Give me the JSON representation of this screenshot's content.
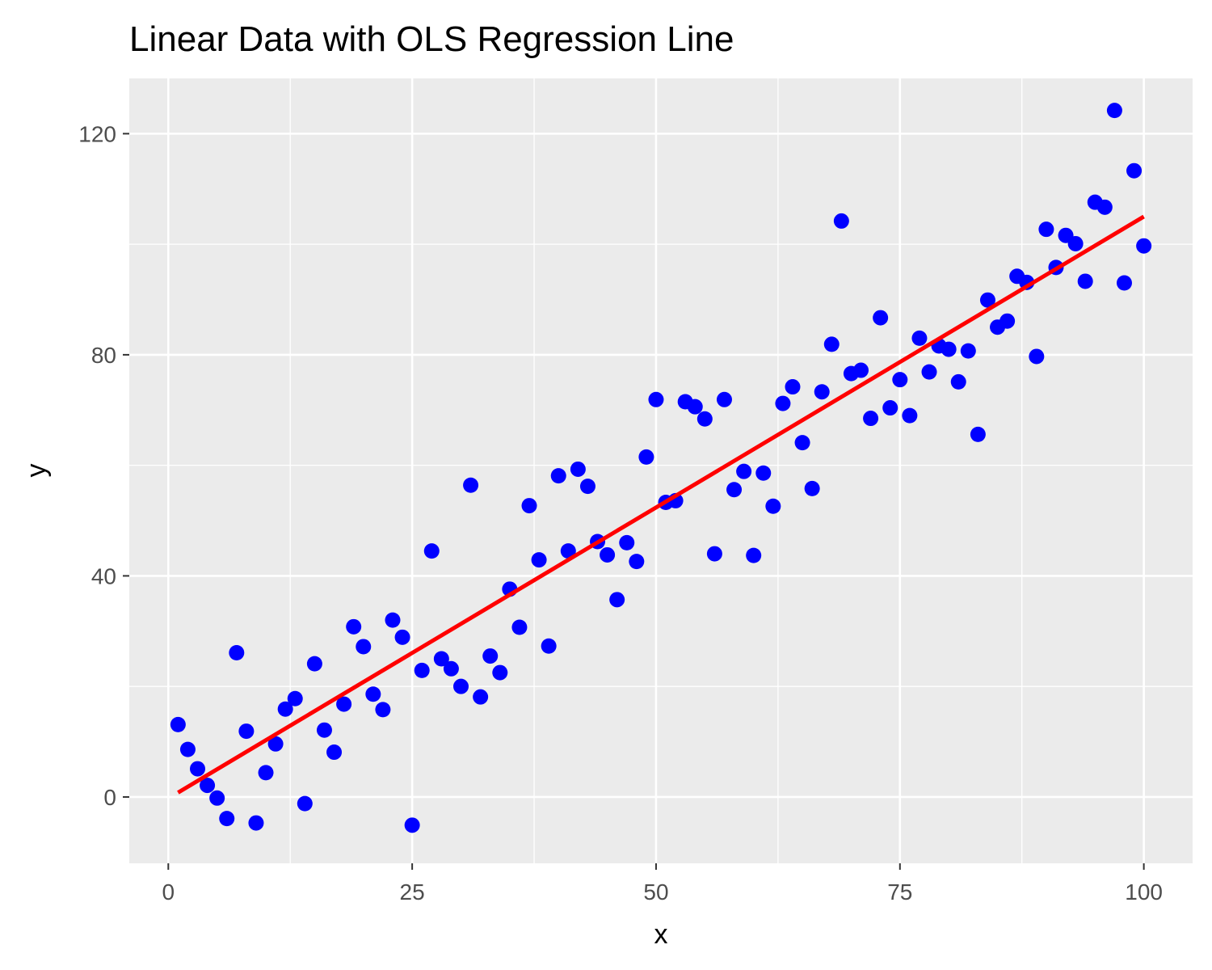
{
  "chart_data": {
    "type": "scatter",
    "title": "Linear Data with OLS Regression Line",
    "xlabel": "x",
    "ylabel": "y",
    "xlim": [
      -4,
      105
    ],
    "ylim": [
      -12,
      130
    ],
    "x_ticks": [
      0,
      25,
      50,
      75,
      100
    ],
    "y_ticks": [
      0,
      40,
      80,
      120
    ],
    "grid": true,
    "legend": "none",
    "colors": {
      "points": "#0000ff",
      "regression_line": "#ff0000",
      "panel": "#ebebeb",
      "grid": "#ffffff"
    },
    "points": {
      "x": [
        1,
        2,
        3,
        4,
        5,
        6,
        7,
        8,
        9,
        10,
        11,
        12,
        13,
        14,
        15,
        16,
        17,
        18,
        19,
        20,
        21,
        22,
        23,
        24,
        25,
        26,
        27,
        28,
        29,
        30,
        31,
        32,
        33,
        34,
        35,
        36,
        37,
        38,
        39,
        40,
        41,
        42,
        43,
        44,
        45,
        46,
        47,
        48,
        49,
        50,
        51,
        52,
        53,
        54,
        55,
        56,
        57,
        58,
        59,
        60,
        61,
        62,
        63,
        64,
        65,
        66,
        67,
        68,
        69,
        70,
        71,
        72,
        73,
        74,
        75,
        76,
        77,
        78,
        79,
        80,
        81,
        82,
        83,
        84,
        85,
        86,
        87,
        88,
        89,
        90,
        91,
        92,
        93,
        94,
        95,
        96,
        97,
        98,
        99,
        100
      ],
      "y": [
        13.1,
        8.6,
        5.1,
        2.1,
        -0.2,
        -3.9,
        26.1,
        11.9,
        -4.7,
        4.4,
        9.6,
        15.9,
        17.8,
        -1.2,
        24.1,
        12.1,
        8.1,
        16.8,
        30.8,
        27.2,
        18.6,
        15.8,
        32.0,
        28.9,
        -5.1,
        22.9,
        44.5,
        25.0,
        23.2,
        20.0,
        56.4,
        18.1,
        25.5,
        22.5,
        37.6,
        30.7,
        52.7,
        42.9,
        27.3,
        58.1,
        44.5,
        59.3,
        56.2,
        46.2,
        43.8,
        35.7,
        46.0,
        42.6,
        61.5,
        71.9,
        53.3,
        53.6,
        71.5,
        70.6,
        68.4,
        44.0,
        71.9,
        55.6,
        58.9,
        43.7,
        58.6,
        52.6,
        71.2,
        74.2,
        64.1,
        55.8,
        73.3,
        81.9,
        104.2,
        76.6,
        77.2,
        68.5,
        86.7,
        70.4,
        75.5,
        69.0,
        83.0,
        76.9,
        81.6,
        81.0,
        75.1,
        80.7,
        65.6,
        89.9,
        85.0,
        86.1,
        94.2,
        93.1,
        79.7,
        102.7,
        95.8,
        101.6,
        100.1,
        93.3,
        107.6,
        106.7,
        124.2,
        93.0,
        113.3,
        99.7
      ]
    },
    "regression_line": {
      "x": [
        1,
        100
      ],
      "y": [
        0.8,
        105.0
      ]
    }
  }
}
